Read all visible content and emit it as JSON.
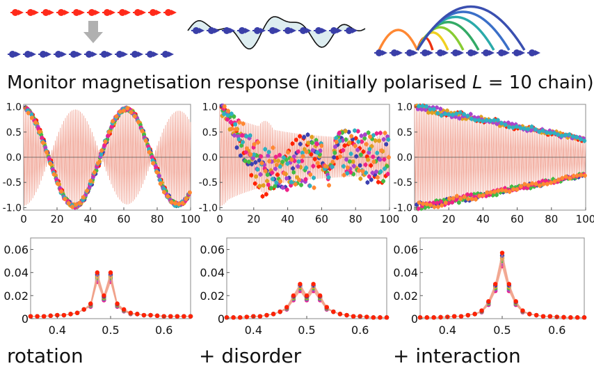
{
  "header": {
    "title_prefix": "Monitor magnetisation response (initially polarised ",
    "title_var": "L",
    "title_suffix": " = 10 chain)"
  },
  "captions": [
    "rotation",
    "+ disorder",
    "+ interaction"
  ],
  "colors": {
    "red": "#ff2a1a",
    "blue": "#3a3fa8",
    "grey": "#b0b0b0",
    "series": [
      "#ff2200",
      "#3c40b0",
      "#e0a020",
      "#44bb44",
      "#aa44cc",
      "#ee2288",
      "#30b0c0",
      "#ff8833"
    ],
    "guide": "#f0a090"
  },
  "illustration": {
    "panels": [
      "polarised-to-rotated-chain",
      "disorder-potential-chain",
      "interaction-chain"
    ],
    "arc_colors": [
      "#ff8833",
      "#ee3311",
      "#f0d020",
      "#88cc33",
      "#33aa66",
      "#2aaaaa",
      "#3a6fc8",
      "#3a4fb0"
    ]
  },
  "chart_data": [
    {
      "type": "scatter",
      "name": "rotation-magnetisation",
      "xlim": [
        0,
        100
      ],
      "ylim": [
        -1.05,
        1.05
      ],
      "xticks": [
        0,
        20,
        40,
        60,
        80,
        100
      ],
      "yticks": [
        -1.0,
        -0.5,
        0.0,
        0.5,
        1.0
      ],
      "xtick_labels": [
        "0",
        "20",
        "40",
        "60",
        "80",
        "100"
      ],
      "ytick_labels": [
        "-1.0",
        "-0.5",
        "0.0",
        "0.5",
        "1.0"
      ],
      "model": "rotation",
      "beat_period": 62,
      "series_count": 8
    },
    {
      "type": "scatter",
      "name": "disorder-magnetisation",
      "xlim": [
        0,
        100
      ],
      "ylim": [
        -1.05,
        1.05
      ],
      "xticks": [
        0,
        20,
        40,
        60,
        80,
        100
      ],
      "yticks": [
        -1.0,
        -0.5,
        0.0,
        0.5,
        1.0
      ],
      "xtick_labels": [
        "0",
        "20",
        "40",
        "60",
        "80",
        "100"
      ],
      "ytick_labels": [
        "-1.0",
        "-0.5",
        "0.0",
        "0.5",
        "1.0"
      ],
      "model": "disorder",
      "series_count": 8
    },
    {
      "type": "scatter",
      "name": "interaction-magnetisation",
      "xlim": [
        0,
        100
      ],
      "ylim": [
        -1.05,
        1.05
      ],
      "xticks": [
        0,
        20,
        40,
        60,
        80,
        100
      ],
      "yticks": [
        -1.0,
        -0.5,
        0.0,
        0.5,
        1.0
      ],
      "xtick_labels": [
        "0",
        "20",
        "40",
        "60",
        "80",
        "100"
      ],
      "ytick_labels": [
        "-1.0",
        "-0.5",
        "0.0",
        "0.5",
        "1.0"
      ],
      "model": "interaction",
      "series_count": 8
    },
    {
      "type": "line",
      "name": "rotation-spectrum",
      "xlim": [
        0.35,
        0.65
      ],
      "ylim": [
        0,
        0.07
      ],
      "xticks": [
        0.4,
        0.5,
        0.6
      ],
      "yticks": [
        0,
        0.02,
        0.04,
        0.06
      ],
      "xtick_labels": [
        "0.4",
        "0.5",
        "0.6"
      ],
      "ytick_labels": [
        "0",
        "0.02",
        "0.04",
        "0.06"
      ],
      "x": [
        0.35,
        0.3625,
        0.375,
        0.3875,
        0.4,
        0.4125,
        0.425,
        0.4375,
        0.45,
        0.4625,
        0.475,
        0.4875,
        0.5,
        0.5125,
        0.525,
        0.5375,
        0.55,
        0.5625,
        0.575,
        0.5875,
        0.6,
        0.6125,
        0.625,
        0.6375,
        0.65
      ],
      "values": [
        0.002,
        0.002,
        0.002,
        0.0025,
        0.003,
        0.003,
        0.004,
        0.005,
        0.008,
        0.013,
        0.04,
        0.02,
        0.04,
        0.013,
        0.008,
        0.005,
        0.004,
        0.003,
        0.003,
        0.0025,
        0.002,
        0.002,
        0.002,
        0.002,
        0.002
      ],
      "series_count": 6
    },
    {
      "type": "line",
      "name": "disorder-spectrum",
      "xlim": [
        0.35,
        0.65
      ],
      "ylim": [
        0,
        0.07
      ],
      "xticks": [
        0.4,
        0.5,
        0.6
      ],
      "yticks": [
        0,
        0.02,
        0.04,
        0.06
      ],
      "xtick_labels": [
        "0.4",
        "0.5",
        "0.6"
      ],
      "ytick_labels": [
        "0",
        "0.02",
        "0.04",
        "0.06"
      ],
      "x": [
        0.35,
        0.3625,
        0.375,
        0.3875,
        0.4,
        0.4125,
        0.425,
        0.4375,
        0.45,
        0.4625,
        0.475,
        0.4875,
        0.5,
        0.5125,
        0.525,
        0.5375,
        0.55,
        0.5625,
        0.575,
        0.5875,
        0.6,
        0.6125,
        0.625,
        0.6375,
        0.65
      ],
      "values": [
        0.001,
        0.001,
        0.001,
        0.0015,
        0.002,
        0.002,
        0.003,
        0.004,
        0.006,
        0.01,
        0.02,
        0.03,
        0.02,
        0.03,
        0.02,
        0.01,
        0.006,
        0.004,
        0.003,
        0.002,
        0.002,
        0.0015,
        0.001,
        0.001,
        0.001
      ],
      "series_count": 6
    },
    {
      "type": "line",
      "name": "interaction-spectrum",
      "xlim": [
        0.35,
        0.65
      ],
      "ylim": [
        0,
        0.07
      ],
      "xticks": [
        0.4,
        0.5,
        0.6
      ],
      "yticks": [
        0,
        0.02,
        0.04,
        0.06
      ],
      "xtick_labels": [
        "0.4",
        "0.5",
        "0.6"
      ],
      "ytick_labels": [
        "0",
        "0.02",
        "0.04",
        "0.06"
      ],
      "x": [
        0.35,
        0.3625,
        0.375,
        0.3875,
        0.4,
        0.4125,
        0.425,
        0.4375,
        0.45,
        0.4625,
        0.475,
        0.4875,
        0.5,
        0.5125,
        0.525,
        0.5375,
        0.55,
        0.5625,
        0.575,
        0.5875,
        0.6,
        0.6125,
        0.625,
        0.6375,
        0.65
      ],
      "values": [
        0.001,
        0.001,
        0.001,
        0.0012,
        0.0015,
        0.002,
        0.002,
        0.003,
        0.004,
        0.007,
        0.015,
        0.03,
        0.057,
        0.03,
        0.015,
        0.007,
        0.004,
        0.003,
        0.002,
        0.002,
        0.0015,
        0.0012,
        0.001,
        0.001,
        0.001
      ],
      "series_count": 6
    }
  ]
}
